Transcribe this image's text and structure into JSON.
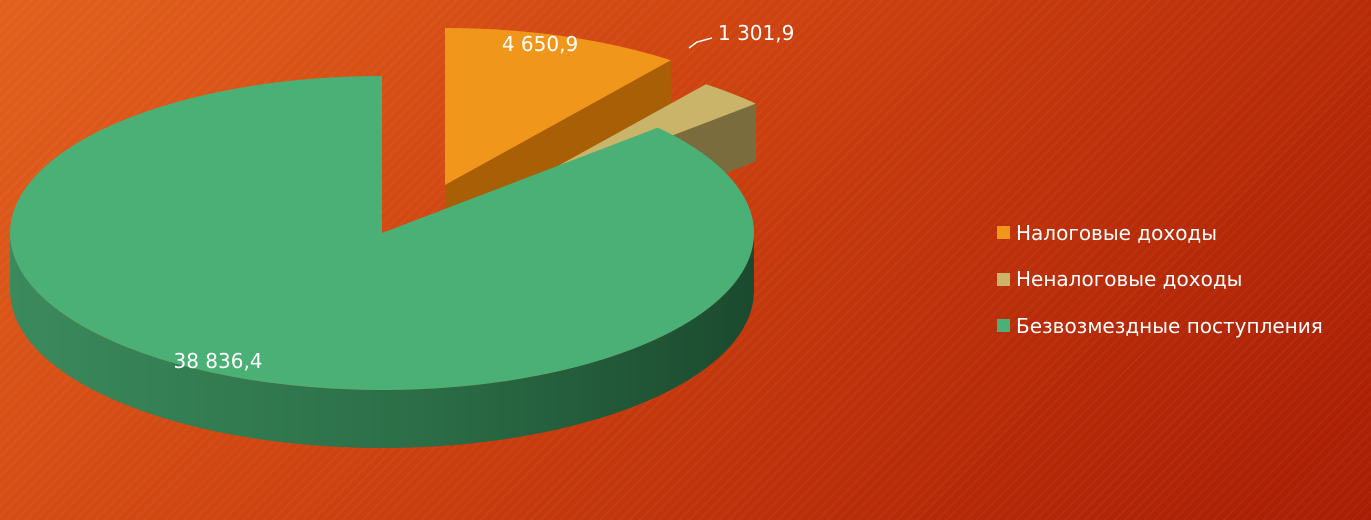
{
  "chart_data": {
    "type": "pie",
    "title": "",
    "legend_position": "right",
    "series": [
      {
        "name": "",
        "values": [
          4650.9,
          1301.9,
          38836.4
        ]
      }
    ],
    "categories": [
      "Налоговые доходы",
      "Неналоговые доходы",
      "Безвозмездные поступления"
    ],
    "slices": [
      {
        "label": "Налоговые доходы",
        "value": 4650.9,
        "value_text": "4 650,9",
        "color": "#f0961b",
        "side_color": "#a85f06"
      },
      {
        "label": "Неналоговые доходы",
        "value": 1301.9,
        "value_text": "1 301,9",
        "color": "#c9b46a",
        "side_color": "#7b6c3e"
      },
      {
        "label": "Безвозмездные поступления",
        "value": 38836.4,
        "value_text": "38 836,4",
        "color": "#4bb075",
        "side_color": "#2f8052"
      }
    ]
  },
  "legend": {
    "items": [
      {
        "label": "Налоговые доходы",
        "color": "#f0961b"
      },
      {
        "label": "Неналоговые доходы",
        "color": "#c9b46a"
      },
      {
        "label": "Безвозмездные поступления",
        "color": "#4bb075"
      }
    ]
  }
}
